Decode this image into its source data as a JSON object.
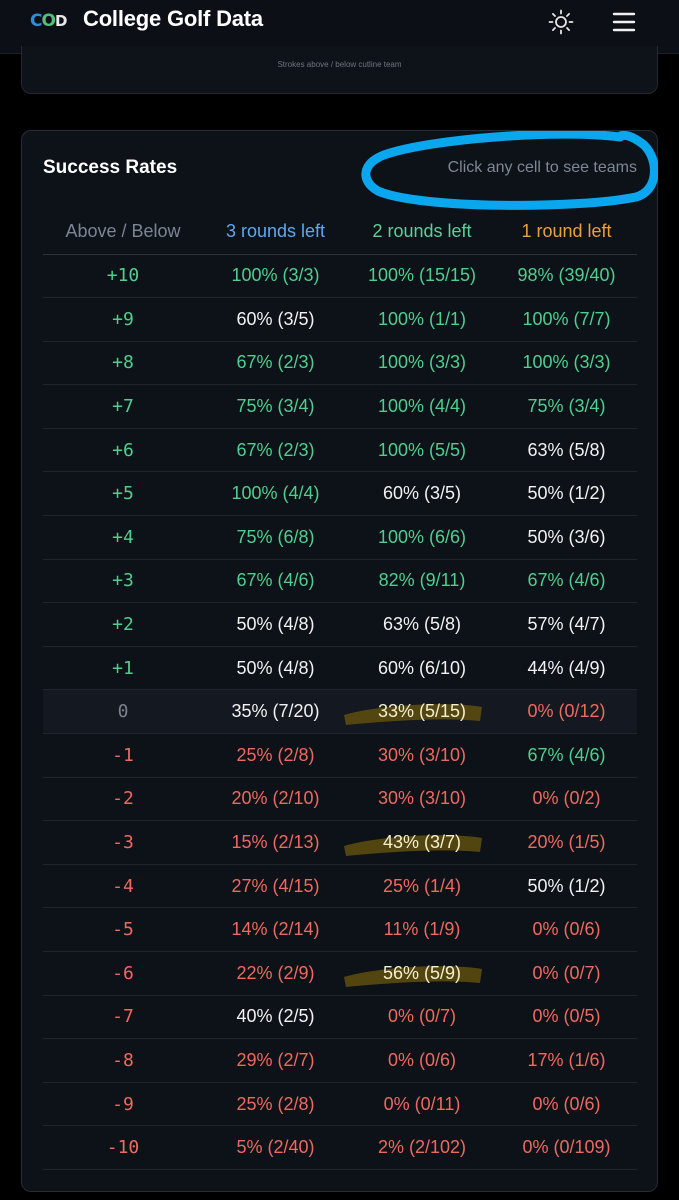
{
  "header": {
    "logo_parts": [
      "C",
      "O",
      "D"
    ],
    "title": "College Golf Data",
    "theme_icon": "sun-icon",
    "menu_icon": "hamburger-menu-icon"
  },
  "prev_card": {
    "caption": "Strokes above / below cutline team"
  },
  "success": {
    "title": "Success Rates",
    "hint": "Click any cell to see teams",
    "headers": [
      "Above / Below",
      "3 rounds left",
      "2 rounds left",
      "1 round left"
    ],
    "rows": [
      {
        "diff": "+10",
        "diff_color": "green",
        "cells": [
          {
            "text": "100% (3/3)",
            "color": "green"
          },
          {
            "text": "100% (15/15)",
            "color": "green"
          },
          {
            "text": "98% (39/40)",
            "color": "green"
          }
        ]
      },
      {
        "diff": "+9",
        "diff_color": "green",
        "cells": [
          {
            "text": "60% (3/5)",
            "color": "white"
          },
          {
            "text": "100% (1/1)",
            "color": "green"
          },
          {
            "text": "100% (7/7)",
            "color": "green"
          }
        ]
      },
      {
        "diff": "+8",
        "diff_color": "green",
        "cells": [
          {
            "text": "67% (2/3)",
            "color": "green"
          },
          {
            "text": "100% (3/3)",
            "color": "green"
          },
          {
            "text": "100% (3/3)",
            "color": "green"
          }
        ]
      },
      {
        "diff": "+7",
        "diff_color": "green",
        "cells": [
          {
            "text": "75% (3/4)",
            "color": "green"
          },
          {
            "text": "100% (4/4)",
            "color": "green"
          },
          {
            "text": "75% (3/4)",
            "color": "green"
          }
        ]
      },
      {
        "diff": "+6",
        "diff_color": "green",
        "cells": [
          {
            "text": "67% (2/3)",
            "color": "green"
          },
          {
            "text": "100% (5/5)",
            "color": "green"
          },
          {
            "text": "63% (5/8)",
            "color": "white"
          }
        ]
      },
      {
        "diff": "+5",
        "diff_color": "green",
        "cells": [
          {
            "text": "100% (4/4)",
            "color": "green"
          },
          {
            "text": "60% (3/5)",
            "color": "white"
          },
          {
            "text": "50% (1/2)",
            "color": "white"
          }
        ]
      },
      {
        "diff": "+4",
        "diff_color": "green",
        "cells": [
          {
            "text": "75% (6/8)",
            "color": "green"
          },
          {
            "text": "100% (6/6)",
            "color": "green"
          },
          {
            "text": "50% (3/6)",
            "color": "white"
          }
        ]
      },
      {
        "diff": "+3",
        "diff_color": "green",
        "cells": [
          {
            "text": "67% (4/6)",
            "color": "green"
          },
          {
            "text": "82% (9/11)",
            "color": "green"
          },
          {
            "text": "67% (4/6)",
            "color": "green"
          }
        ]
      },
      {
        "diff": "+2",
        "diff_color": "green",
        "cells": [
          {
            "text": "50% (4/8)",
            "color": "white"
          },
          {
            "text": "63% (5/8)",
            "color": "white"
          },
          {
            "text": "57% (4/7)",
            "color": "white"
          }
        ]
      },
      {
        "diff": "+1",
        "diff_color": "green",
        "cells": [
          {
            "text": "50% (4/8)",
            "color": "white"
          },
          {
            "text": "60% (6/10)",
            "color": "white"
          },
          {
            "text": "44% (4/9)",
            "color": "white"
          }
        ]
      },
      {
        "diff": "0",
        "diff_color": "gray",
        "zero": true,
        "cells": [
          {
            "text": "35% (7/20)",
            "color": "white"
          },
          {
            "text": "33% (5/15)",
            "color": "white",
            "highlight": true
          },
          {
            "text": "0% (0/12)",
            "color": "red"
          }
        ]
      },
      {
        "diff": "-1",
        "diff_color": "red",
        "cells": [
          {
            "text": "25% (2/8)",
            "color": "red"
          },
          {
            "text": "30% (3/10)",
            "color": "red"
          },
          {
            "text": "67% (4/6)",
            "color": "green"
          }
        ]
      },
      {
        "diff": "-2",
        "diff_color": "red",
        "cells": [
          {
            "text": "20% (2/10)",
            "color": "red"
          },
          {
            "text": "30% (3/10)",
            "color": "red"
          },
          {
            "text": "0% (0/2)",
            "color": "red"
          }
        ]
      },
      {
        "diff": "-3",
        "diff_color": "red",
        "cells": [
          {
            "text": "15% (2/13)",
            "color": "red"
          },
          {
            "text": "43% (3/7)",
            "color": "white",
            "highlight": true
          },
          {
            "text": "20% (1/5)",
            "color": "red"
          }
        ]
      },
      {
        "diff": "-4",
        "diff_color": "red",
        "cells": [
          {
            "text": "27% (4/15)",
            "color": "red"
          },
          {
            "text": "25% (1/4)",
            "color": "red"
          },
          {
            "text": "50% (1/2)",
            "color": "white"
          }
        ]
      },
      {
        "diff": "-5",
        "diff_color": "red",
        "cells": [
          {
            "text": "14% (2/14)",
            "color": "red"
          },
          {
            "text": "11% (1/9)",
            "color": "red"
          },
          {
            "text": "0% (0/6)",
            "color": "red"
          }
        ]
      },
      {
        "diff": "-6",
        "diff_color": "red",
        "cells": [
          {
            "text": "22% (2/9)",
            "color": "red"
          },
          {
            "text": "56% (5/9)",
            "color": "white",
            "highlight": true
          },
          {
            "text": "0% (0/7)",
            "color": "red"
          }
        ]
      },
      {
        "diff": "-7",
        "diff_color": "red",
        "cells": [
          {
            "text": "40% (2/5)",
            "color": "white"
          },
          {
            "text": "0% (0/7)",
            "color": "red"
          },
          {
            "text": "0% (0/5)",
            "color": "red"
          }
        ]
      },
      {
        "diff": "-8",
        "diff_color": "red",
        "cells": [
          {
            "text": "29% (2/7)",
            "color": "red"
          },
          {
            "text": "0% (0/6)",
            "color": "red"
          },
          {
            "text": "17% (1/6)",
            "color": "red"
          }
        ]
      },
      {
        "diff": "-9",
        "diff_color": "red",
        "cells": [
          {
            "text": "25% (2/8)",
            "color": "red"
          },
          {
            "text": "0% (0/11)",
            "color": "red"
          },
          {
            "text": "0% (0/6)",
            "color": "red"
          }
        ]
      },
      {
        "diff": "-10",
        "diff_color": "red",
        "cells": [
          {
            "text": "5% (2/40)",
            "color": "red"
          },
          {
            "text": "2% (2/102)",
            "color": "red"
          },
          {
            "text": "0% (0/109)",
            "color": "red"
          }
        ]
      }
    ]
  },
  "colors": {
    "green": "#4fcf8e",
    "white": "#f2f2f2",
    "red": "#ee6a5f",
    "gray": "#7c828c",
    "blue_header": "#5ea9ee",
    "green_header": "#5fcf9a",
    "orange_header": "#e9a13a",
    "annotation_blue": "#0aa6ee",
    "annotation_yellow": "#5b4b10"
  }
}
